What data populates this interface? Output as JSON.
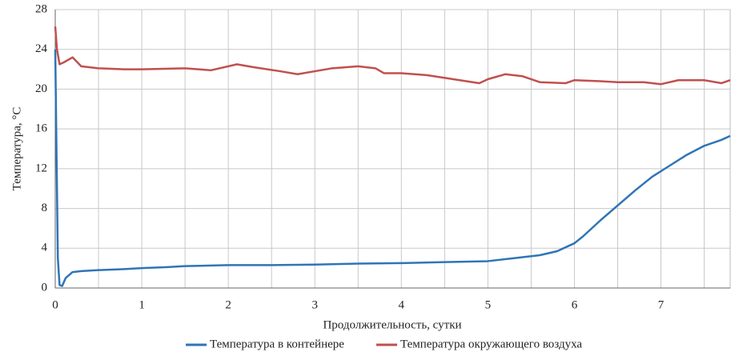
{
  "chart_data": {
    "type": "line",
    "xlabel": "Продолжительность, сутки",
    "ylabel": "Температура, °С",
    "xlim": [
      0,
      7.8
    ],
    "ylim": [
      0,
      28
    ],
    "xticks": [
      0,
      1,
      2,
      3,
      4,
      5,
      6,
      7
    ],
    "xminor": [
      0.5,
      1.5,
      2.5,
      3.5,
      4.5,
      5.5,
      6.5,
      7.5
    ],
    "yticks": [
      0,
      4,
      8,
      12,
      16,
      20,
      24,
      28
    ],
    "grid": true,
    "legend": "bottom",
    "series": [
      {
        "name": "Температура в контейнере",
        "color": "#2e75b6",
        "x": [
          0,
          0.01,
          0.02,
          0.03,
          0.05,
          0.08,
          0.12,
          0.2,
          0.3,
          0.5,
          0.8,
          1,
          1.3,
          1.5,
          2,
          2.5,
          3,
          3.5,
          4,
          4.5,
          5,
          5.3,
          5.6,
          5.8,
          6,
          6.1,
          6.3,
          6.5,
          6.7,
          6.9,
          7.1,
          7.3,
          7.5,
          7.7,
          7.8
        ],
        "values": [
          24,
          17,
          10,
          3,
          0.3,
          0.2,
          1,
          1.6,
          1.7,
          1.8,
          1.9,
          2,
          2.1,
          2.2,
          2.3,
          2.3,
          2.35,
          2.45,
          2.5,
          2.6,
          2.7,
          3.0,
          3.3,
          3.7,
          4.5,
          5.2,
          6.8,
          8.3,
          9.8,
          11.2,
          12.3,
          13.4,
          14.3,
          14.9,
          15.3
        ]
      },
      {
        "name": "Температура окружающего воздуха",
        "color": "#c0504d",
        "x": [
          0,
          0.02,
          0.05,
          0.1,
          0.2,
          0.3,
          0.5,
          0.8,
          1,
          1.5,
          1.8,
          2.1,
          2.3,
          2.6,
          2.8,
          3,
          3.2,
          3.5,
          3.7,
          3.8,
          4,
          4.3,
          4.6,
          4.9,
          5.0,
          5.2,
          5.4,
          5.6,
          5.9,
          6,
          6.3,
          6.5,
          6.8,
          7,
          7.2,
          7.5,
          7.7,
          7.8
        ],
        "values": [
          26.3,
          24,
          22.5,
          22.7,
          23.2,
          22.3,
          22.1,
          22.0,
          22.0,
          22.1,
          21.9,
          22.5,
          22.2,
          21.8,
          21.5,
          21.8,
          22.1,
          22.3,
          22.1,
          21.6,
          21.6,
          21.4,
          21.0,
          20.6,
          21.0,
          21.5,
          21.3,
          20.7,
          20.6,
          20.9,
          20.8,
          20.7,
          20.7,
          20.5,
          20.9,
          20.9,
          20.6,
          20.9
        ]
      }
    ]
  }
}
